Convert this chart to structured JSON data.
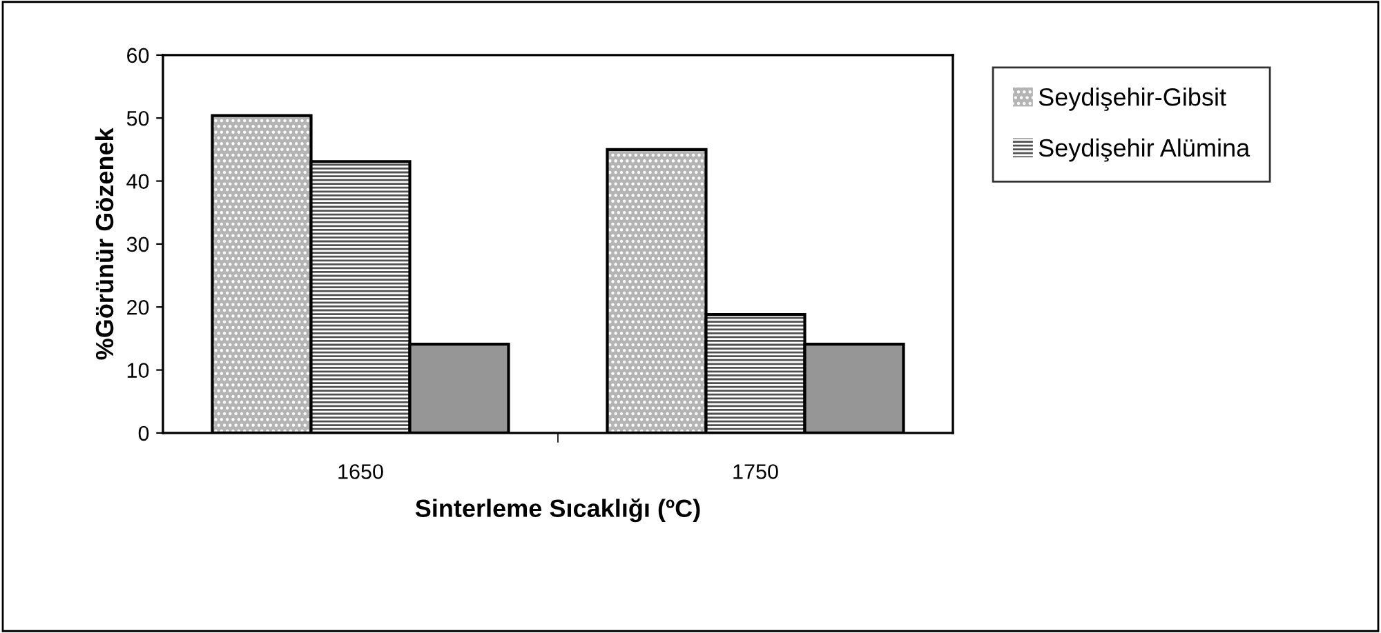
{
  "chart_data": {
    "type": "bar",
    "xlabel": "Sinterleme Sıcaklığı (ºC)",
    "ylabel": "%Görünür Gözenek",
    "categories": [
      "1650",
      "1750"
    ],
    "series": [
      {
        "name": "Seydişehir-Gibsit",
        "color": "#b4b4b4",
        "values": [
          50.4,
          45.0
        ]
      },
      {
        "name": "Seydişehir Alümina",
        "color": "#505050",
        "values": [
          43.1,
          18.8
        ]
      },
      {
        "color": "#969696",
        "values": [
          14.1,
          14.1
        ]
      }
    ],
    "ylim": [
      0,
      60
    ],
    "yticks": [
      0,
      10,
      20,
      30,
      40,
      50,
      60
    ],
    "grid": false,
    "legend": "right"
  }
}
